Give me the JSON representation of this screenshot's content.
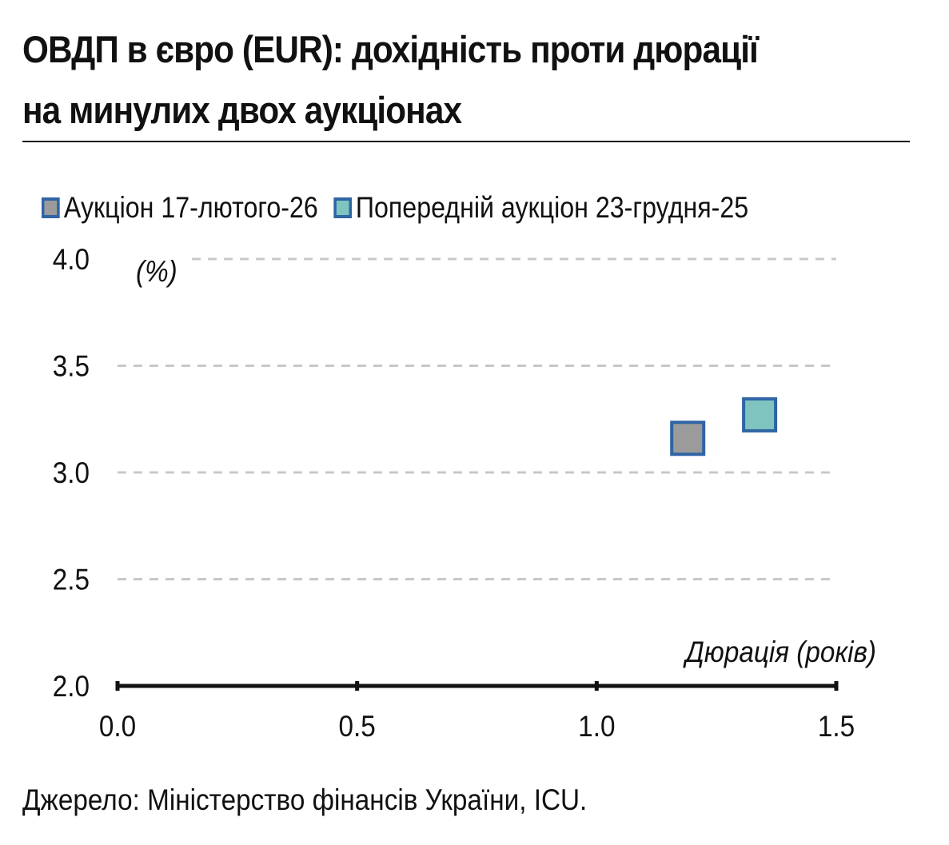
{
  "title_line1": "ОВДП в євро (EUR): дохідність проти дюрації",
  "title_line2": "на минулих двох аукціонах",
  "source": "Джерело: Міністерство фінансів України, ICU.",
  "colors": {
    "marker_border": "#2f64a5",
    "series_current": "#9b9b9b",
    "series_previous": "#7fc4bf",
    "grid": "#c8c8c8",
    "axis": "#111111"
  },
  "chart_data": {
    "type": "scatter",
    "xlabel": "Дюрація (років)",
    "ylabel": "(%)",
    "xlim": [
      0,
      1.5
    ],
    "ylim": [
      2.0,
      4.0
    ],
    "x_ticks": [
      "0.0",
      "0.5",
      "1.0",
      "1.5"
    ],
    "y_ticks": [
      "4.0",
      "3.5",
      "3.0",
      "2.5",
      "2.0"
    ],
    "grid": true,
    "legend_position": "top",
    "series": [
      {
        "name": "Аукціон 17-лютого-26",
        "color": "#9b9b9b",
        "points": [
          {
            "x": 1.19,
            "y": 3.16
          }
        ]
      },
      {
        "name": "Попередній аукціон 23-грудня-25",
        "color": "#7fc4bf",
        "points": [
          {
            "x": 1.34,
            "y": 3.27
          }
        ]
      }
    ]
  }
}
